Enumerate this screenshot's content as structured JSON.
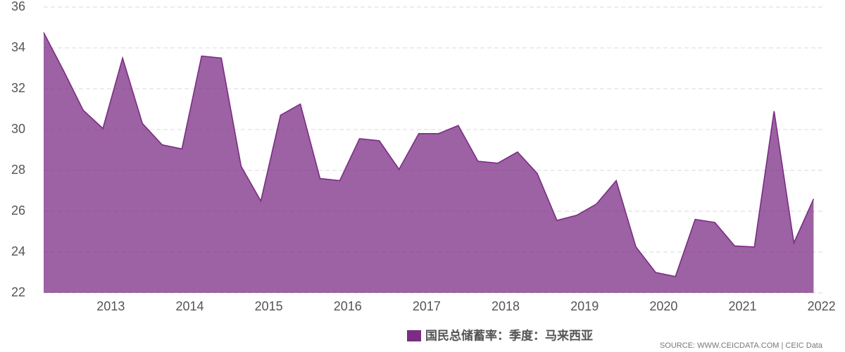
{
  "chart_data": {
    "type": "area",
    "x": [
      2012.15,
      2012.4,
      2012.65,
      2012.9,
      2013.15,
      2013.4,
      2013.65,
      2013.9,
      2014.15,
      2014.4,
      2014.65,
      2014.9,
      2015.15,
      2015.4,
      2015.65,
      2015.9,
      2016.15,
      2016.4,
      2016.65,
      2016.9,
      2017.15,
      2017.4,
      2017.65,
      2017.9,
      2018.15,
      2018.4,
      2018.65,
      2018.9,
      2019.15,
      2019.4,
      2019.65,
      2019.9,
      2020.15,
      2020.4,
      2020.65,
      2020.9,
      2021.15,
      2021.4,
      2021.65,
      2021.9
    ],
    "series": [
      {
        "name": "国民总储蓄率：季度：马来西亚",
        "color": "#7b2d84",
        "values": [
          34.75,
          32.9,
          30.95,
          30.05,
          33.5,
          30.3,
          29.25,
          29.05,
          33.6,
          33.5,
          28.2,
          26.5,
          30.7,
          31.25,
          27.6,
          27.5,
          29.55,
          29.45,
          28.05,
          29.8,
          29.8,
          30.2,
          28.45,
          28.35,
          28.9,
          27.85,
          25.55,
          25.8,
          26.35,
          27.5,
          24.25,
          23.0,
          22.8,
          25.6,
          25.45,
          24.3,
          24.25,
          30.9,
          24.45,
          26.6
        ]
      }
    ],
    "xlim": [
      2012.15,
      2022.03
    ],
    "xticks": [
      2013,
      2014,
      2015,
      2016,
      2017,
      2018,
      2019,
      2020,
      2021,
      2022
    ],
    "ylim": [
      22,
      36
    ],
    "yticks": [
      22,
      24,
      26,
      28,
      30,
      32,
      34,
      36
    ],
    "grid": true,
    "source": "SOURCE: WWW.CEICDATA.COM | CEIC Data"
  }
}
